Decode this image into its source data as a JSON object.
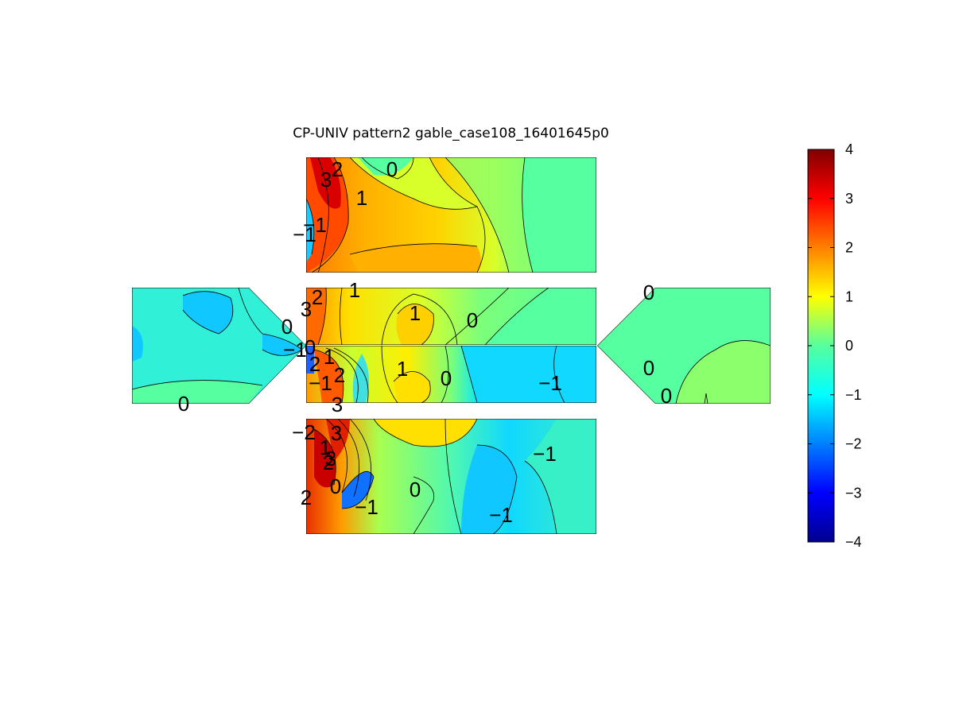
{
  "chart_data": {
    "type": "contour",
    "title": "CP-UNIV pattern2 gable_case108_16401645p0",
    "colorbar": {
      "min": -4,
      "max": 4,
      "ticks": [
        4,
        3,
        2,
        1,
        0,
        -1,
        -2,
        -3,
        -4
      ],
      "tick_labels": [
        "4",
        "3",
        "2",
        "1",
        "0",
        "−1",
        "−2",
        "−3",
        "−4"
      ],
      "colormap": "jet"
    },
    "panels": [
      {
        "name": "top",
        "contour_labels": [
          "3",
          "2",
          "0",
          "1",
          "−1",
          "−1"
        ]
      },
      {
        "name": "middle-upper",
        "contour_labels": [
          "3",
          "2",
          "1",
          "1",
          "0"
        ]
      },
      {
        "name": "middle-lower",
        "contour_labels": [
          "2",
          "1",
          "2",
          "−1",
          "1",
          "0",
          "−1",
          "3"
        ]
      },
      {
        "name": "bottom",
        "contour_labels": [
          "−2",
          "3",
          "1",
          "2",
          "3",
          "2",
          "0",
          "−1",
          "0",
          "−1",
          "−1"
        ]
      },
      {
        "name": "left",
        "contour_labels": [
          "0",
          "−1",
          "0",
          "0"
        ]
      },
      {
        "name": "right",
        "contour_labels": [
          "0",
          "0",
          "0"
        ]
      }
    ]
  }
}
